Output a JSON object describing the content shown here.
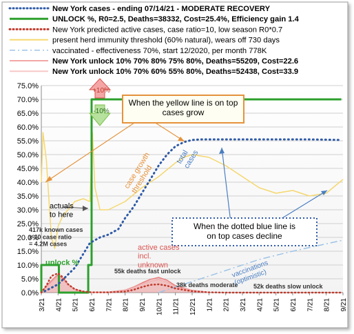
{
  "chart_data": {
    "type": "line",
    "title": "",
    "xlabel": "",
    "ylabel": "",
    "ylim": [
      0,
      75
    ],
    "yticks": [
      "0.0%",
      "5.0%",
      "10.0%",
      "15.0%",
      "20.0%",
      "25.0%",
      "30.0%",
      "35.0%",
      "40.0%",
      "45.0%",
      "50.0%",
      "55.0%",
      "60.0%",
      "65.0%",
      "70.0%",
      "75.0%"
    ],
    "xticks": [
      "3/21",
      "4/21",
      "5/21",
      "6/21",
      "7/21",
      "8/21",
      "9/21",
      "10/21",
      "11/21",
      "12/21",
      "1/21",
      "2/21",
      "3/21",
      "4/21",
      "5/21",
      "6/21",
      "7/21",
      "8/21",
      "9/21"
    ],
    "grid": true,
    "legend_position": "top",
    "legend": [
      {
        "label": "New York cases - ending 07/14/21 - MODERATE RECOVERY",
        "color": "#2e5aa8",
        "style": "dots",
        "bold": true
      },
      {
        "label": "UNLOCK %, R0=2.5,  Deaths=38332, Cost=25.4%, Efficiency gain 1.4",
        "color": "#2ca02c",
        "style": "solid-thick",
        "bold": true
      },
      {
        "label": "New York predicted active cases, case ratio=10, low season R0*0.7",
        "color": "#c0392b",
        "style": "dots",
        "bold": false
      },
      {
        "label": "present herd immunity threshold (60% natural), wears off 730 days",
        "color": "#f5d76e",
        "style": "solid",
        "bold": false
      },
      {
        "label": "vaccinated - effectiveness 70%, start 12/2020, per month 778K",
        "color": "#9dc3e6",
        "style": "dashed",
        "bold": false
      },
      {
        "label": "New York unlock 10% 70% 80% 75% 80%,  Deaths=55209, Cost=22.6",
        "color": "#f4a6a6",
        "style": "solid",
        "bold": true
      },
      {
        "label": "New York unlock 10% 70% 60% 55% 80%, Deaths=52438, Cost=33.9",
        "color": "#f8c8c8",
        "style": "solid",
        "bold": true
      }
    ],
    "series": [
      {
        "name": "New York cases",
        "color": "#2e5aa8",
        "x": [
          0.2,
          1,
          2,
          2.9,
          3.5,
          4,
          4.6,
          5,
          5.5,
          6,
          6.5,
          7,
          7.5,
          8,
          8.5,
          9,
          9.5,
          10,
          11,
          12,
          13,
          14,
          15,
          16,
          17,
          17.8
        ],
        "values": [
          0.5,
          3,
          9,
          18,
          20,
          21,
          23,
          27,
          31,
          36,
          41,
          46,
          50,
          53,
          54.5,
          55.3,
          55.5,
          55.5,
          55.5,
          55.5,
          55.5,
          55.5,
          55.5,
          55.5,
          55.4,
          55.3
        ]
      },
      {
        "name": "UNLOCK %",
        "color": "#2ca02c",
        "x": [
          0,
          0,
          1.05,
          1.05,
          2.8,
          2.8,
          3.0,
          3.0,
          17.9
        ],
        "values": [
          0,
          10,
          10,
          0,
          0,
          10,
          10,
          70,
          70
        ]
      },
      {
        "name": "New York predicted active cases",
        "color": "#c0392b",
        "x": [
          0,
          0.3,
          0.6,
          1,
          1.3,
          1.6,
          2,
          2.5,
          3,
          4,
          5,
          5.5,
          6,
          6.5,
          7,
          7.5,
          8,
          9,
          10,
          11,
          12,
          13,
          14,
          15,
          16,
          17,
          18
        ],
        "values": [
          0,
          2.5,
          6,
          7,
          5.5,
          3,
          1.2,
          0.4,
          0.1,
          0.1,
          0.4,
          1,
          2,
          2.8,
          3,
          2.5,
          1.5,
          0.5,
          0.1,
          0,
          0,
          0,
          0,
          0,
          0,
          0,
          0
        ]
      },
      {
        "name": "present herd immunity threshold",
        "color": "#f5d76e",
        "x": [
          0,
          0.1,
          0.3,
          0.6,
          0.8,
          1,
          1.3,
          1.6,
          2,
          2.5,
          2.9,
          3.05,
          3.2,
          3.5,
          4,
          5,
          6,
          7,
          8,
          8.5,
          9,
          10,
          11,
          12,
          13,
          14,
          15,
          16,
          17,
          18
        ],
        "values": [
          40,
          58,
          48,
          20,
          16,
          24,
          28,
          30,
          33,
          34,
          33,
          58,
          38,
          30,
          30,
          33,
          38,
          42,
          47,
          49,
          50,
          49,
          46,
          42,
          38,
          36,
          37,
          35,
          36,
          41
        ]
      },
      {
        "name": "vaccinated",
        "color": "#9dc3e6",
        "x": [
          7,
          9,
          11,
          13,
          15,
          18
        ],
        "values": [
          0,
          4,
          8,
          12,
          15,
          19
        ]
      },
      {
        "name": "New York unlock 10% 70% 80% 75% 80%",
        "color": "#e88080",
        "x": [
          0,
          0.4,
          0.8,
          1,
          1.3,
          1.6,
          2,
          2.5,
          3,
          4,
          5,
          5.5,
          6,
          6.5,
          7,
          7.5,
          8,
          9,
          10
        ],
        "values": [
          0,
          3,
          5.5,
          6.5,
          5,
          3,
          1.2,
          0.4,
          0.1,
          0.2,
          0.9,
          2,
          3.5,
          4.8,
          5.5,
          4.5,
          2.5,
          0.8,
          0.1
        ]
      },
      {
        "name": "New York unlock 10% 70% 60% 55% 80%",
        "color": "#f2b0b0",
        "x": [
          0,
          0.4,
          0.8,
          1,
          1.3,
          1.6,
          2,
          2.5,
          3,
          4,
          5,
          5.5,
          6,
          6.5,
          7,
          7.5,
          8,
          9,
          10
        ],
        "values": [
          0,
          2.5,
          5,
          6,
          4.6,
          2.8,
          1.1,
          0.3,
          0.1,
          0.2,
          0.8,
          1.8,
          3.1,
          4.1,
          4.7,
          3.8,
          2.1,
          0.7,
          0.1
        ]
      }
    ],
    "annotations": {
      "callout_yellow": "When the yellow line is on top cases grow",
      "callout_blue": "When the dotted blue line is on top cases decline",
      "arrow_up_label": "+10%",
      "arrow_down_label": "-10%",
      "actuals": "actuals to here",
      "known_cases": "417k known cases x 10 case ratio = 4.2M cases",
      "unlock_pct": "unlock %",
      "active_cases": "active cases incl. unknown",
      "deaths_fast": "55k deaths fast unlock",
      "deaths_moderate": "38k deaths moderate",
      "deaths_slow": "52k deaths slow unlock",
      "total_cases": "total cases",
      "case_growth_threshold": "case growth threshold",
      "vaccinations": "vaccinations (optimistic)"
    }
  }
}
